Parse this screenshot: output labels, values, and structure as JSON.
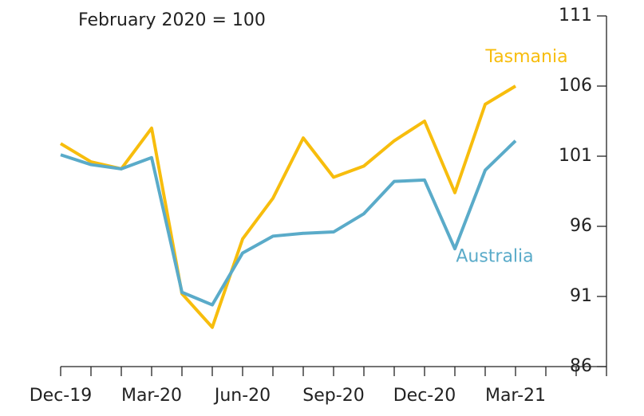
{
  "chart_data": {
    "type": "line",
    "subtitle": "February 2020 = 100",
    "categories": [
      "Dec-19",
      null,
      null,
      "Mar-20",
      null,
      null,
      "Jun-20",
      null,
      null,
      "Sep-20",
      null,
      null,
      "Dec-20",
      null,
      null,
      "Mar-21",
      null,
      null,
      null
    ],
    "series": [
      {
        "name": "Tasmania",
        "color": "#f7bd0d",
        "values": [
          101.9,
          100.6,
          100.1,
          103.0,
          91.2,
          88.8,
          95.1,
          98.0,
          102.3,
          99.5,
          100.3,
          102.1,
          103.5,
          98.4,
          104.7,
          106.0,
          null,
          null,
          null
        ]
      },
      {
        "name": "Australia",
        "color": "#5aabc9",
        "values": [
          101.1,
          100.4,
          100.1,
          100.9,
          91.3,
          90.4,
          94.1,
          95.3,
          95.5,
          95.6,
          96.9,
          99.2,
          99.3,
          94.4,
          100.0,
          102.1,
          null,
          null,
          null
        ]
      }
    ],
    "ylim": [
      86,
      111
    ],
    "yticks": [
      86,
      91,
      96,
      101,
      106,
      111
    ],
    "grid": false
  }
}
